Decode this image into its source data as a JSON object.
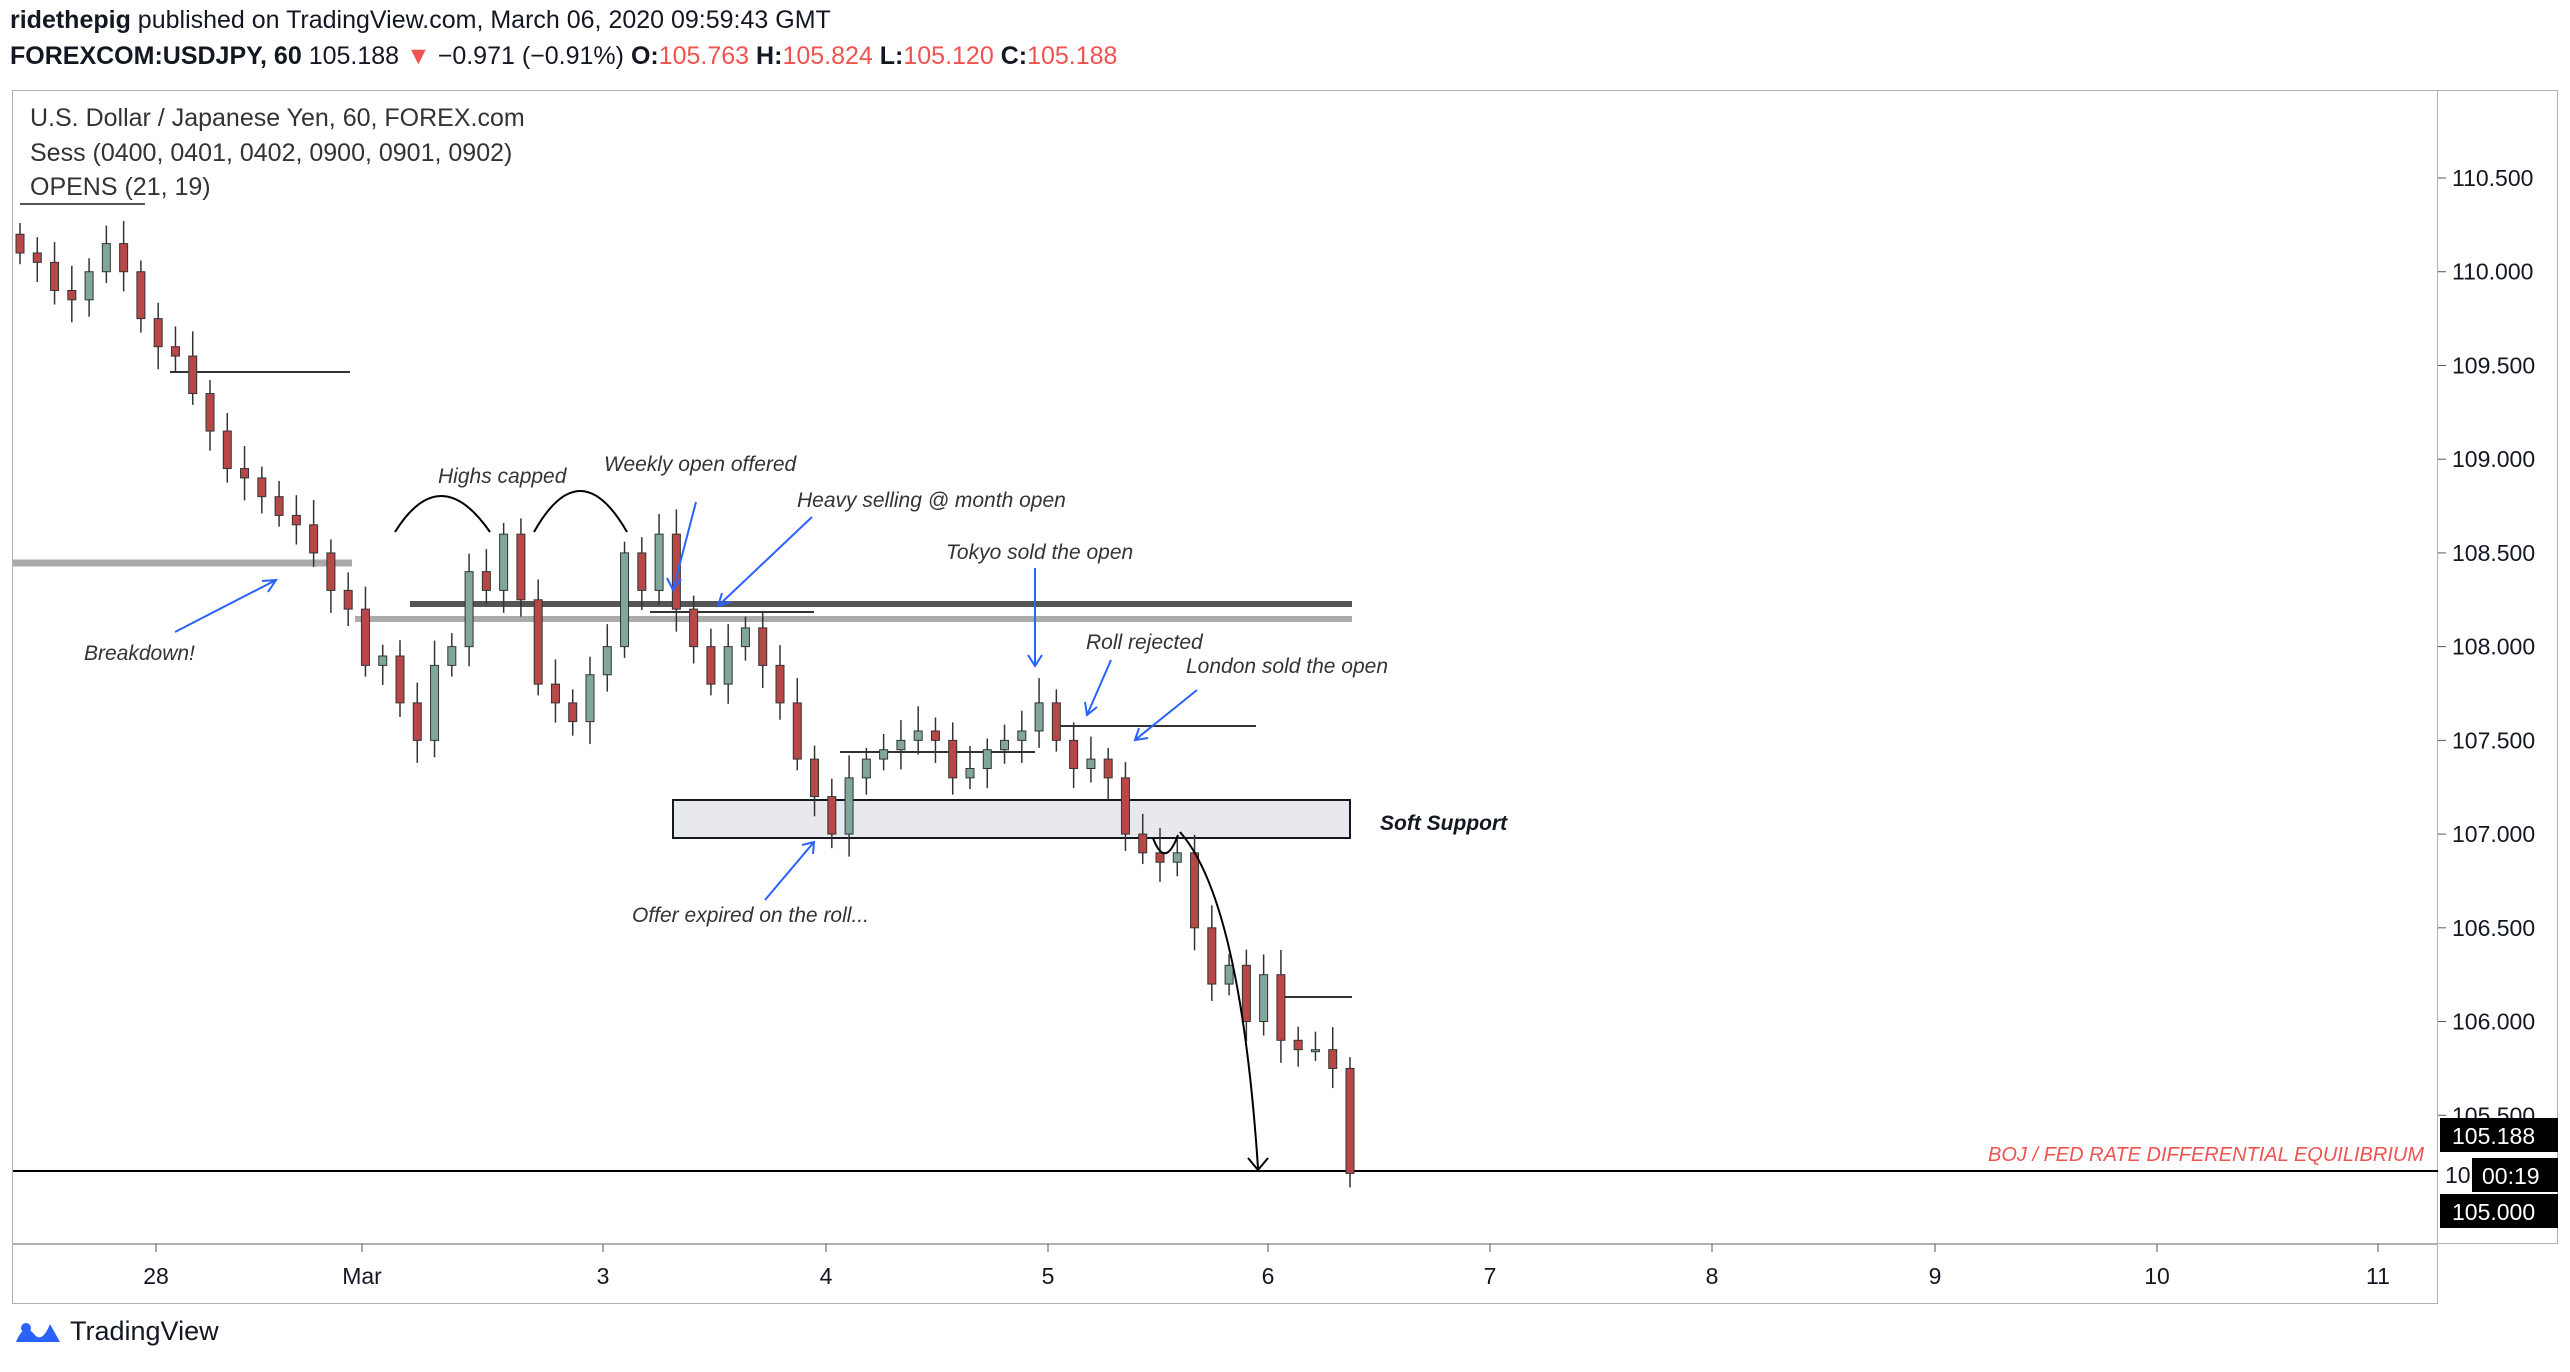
{
  "header": {
    "publisher": "ridethepig",
    "published_text": "published on TradingView.com, March 06, 2020 09:59:43 GMT",
    "symbol": "FOREXCOM:USDJPY, 60",
    "last": "105.188",
    "down_arrow": "▼",
    "change": "−0.971 (−0.91%)",
    "o_label": "O:",
    "o_value": "105.763",
    "h_label": "H:",
    "h_value": "105.824",
    "l_label": "L:",
    "l_value": "105.120",
    "c_label": "C:",
    "c_value": "105.188"
  },
  "legend": {
    "title": "U.S. Dollar / Japanese Yen, 60, FOREX.com",
    "sess": "Sess (0400, 0401, 0402, 0900, 0901, 0902)",
    "opens": "OPENS (21, 19)"
  },
  "price_axis": {
    "ticks": [
      "110.500",
      "110.000",
      "109.500",
      "109.000",
      "108.500",
      "108.000",
      "107.500",
      "107.000",
      "106.500",
      "106.000",
      "105.500",
      "105.000"
    ],
    "last_price_label": "105.188",
    "countdown_label": "00:19",
    "level_label": "105.000",
    "hidden_label_fragment": "10"
  },
  "time_axis": {
    "ticks": [
      "28",
      "Mar",
      "3",
      "4",
      "5",
      "6",
      "7",
      "8",
      "9",
      "10",
      "11"
    ]
  },
  "annotations": {
    "breakdown": "Breakdown!",
    "highs_capped": "Highs capped",
    "weekly_open": "Weekly open offered",
    "heavy_selling": "Heavy selling @ month open",
    "tokyo": "Tokyo sold the open",
    "roll_rejected": "Roll rejected",
    "london": "London sold the open",
    "soft_support": "Soft Support",
    "offer_expired": "Offer expired on the roll...",
    "boj_fed": "BOJ / FED RATE DIFFERENTIAL EQUILIBRIUM"
  },
  "footer": {
    "brand": "TradingView"
  },
  "colors": {
    "up": "#26a69a",
    "down": "#ef5350",
    "candle_up_body": "#81a79d",
    "candle_down_body": "#b84848",
    "annotation_arrow": "#2962ff",
    "red_text": "#ef5350"
  },
  "chart_data": {
    "type": "candlestick",
    "symbol": "USDJPY",
    "interval": "60",
    "ylim": [
      104.5,
      111.0
    ],
    "x_ticks": [
      "28",
      "Mar",
      "3",
      "4",
      "5",
      "6",
      "7",
      "8",
      "9",
      "10",
      "11"
    ],
    "levels": [
      {
        "label": "Month open",
        "price": 108.13
      },
      {
        "label": "Weekly open",
        "price": 108.05
      },
      {
        "label": "Soft Support",
        "range": [
          106.83,
          107.04
        ]
      },
      {
        "label": "BOJ / FED RATE DIFFERENTIAL EQUILIBRIUM",
        "price": 105.0
      }
    ],
    "last": 105.188,
    "ohlc_summary": {
      "open": 105.763,
      "high": 105.824,
      "low": 105.12,
      "close": 105.188
    },
    "closes_approx": [
      110.1,
      110.05,
      109.9,
      109.85,
      110.0,
      110.15,
      110.0,
      109.75,
      109.6,
      109.55,
      109.35,
      109.15,
      108.95,
      108.9,
      108.8,
      108.7,
      108.65,
      108.5,
      108.3,
      108.2,
      107.9,
      107.95,
      107.7,
      107.5,
      107.9,
      108.0,
      108.4,
      108.3,
      108.6,
      108.25,
      107.8,
      107.7,
      107.6,
      107.85,
      108.0,
      108.5,
      108.3,
      108.6,
      108.2,
      108.0,
      107.8,
      108.0,
      108.1,
      107.9,
      107.7,
      107.4,
      107.2,
      107.0,
      107.3,
      107.4,
      107.45,
      107.5,
      107.55,
      107.5,
      107.3,
      107.35,
      107.45,
      107.5,
      107.55,
      107.7,
      107.5,
      107.35,
      107.4,
      107.3,
      107.0,
      106.9,
      106.85,
      106.9,
      106.5,
      106.2,
      106.3,
      106.0,
      106.25,
      105.9,
      105.85,
      105.85,
      105.75,
      105.19
    ]
  }
}
